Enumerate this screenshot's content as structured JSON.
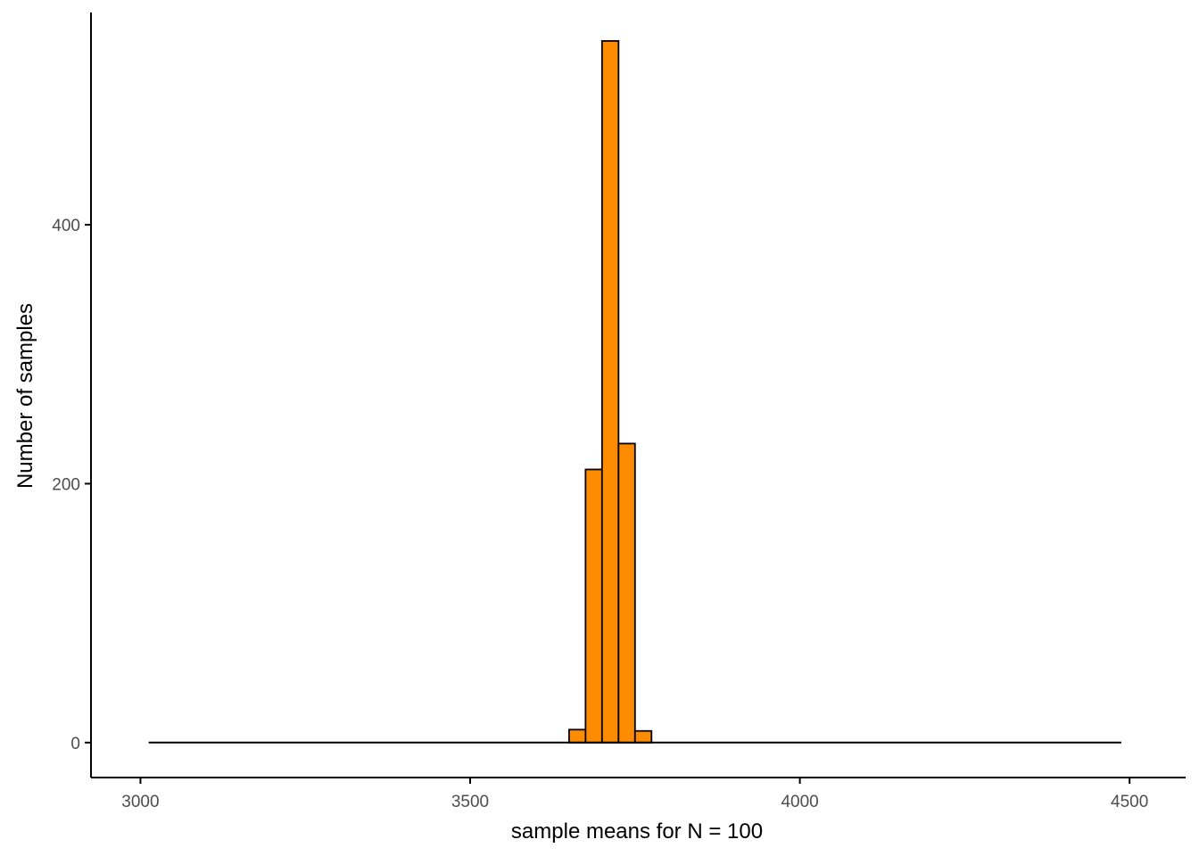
{
  "chart_data": {
    "type": "bar",
    "title": "",
    "xlabel": "sample means for N = 100",
    "ylabel": "Number of samples",
    "xlim": [
      2925,
      4585
    ],
    "ylim": [
      -27,
      564
    ],
    "x_ticks": [
      3000,
      3500,
      4000,
      4500
    ],
    "y_ticks": [
      0,
      200,
      400
    ],
    "grid": false,
    "legend": "none",
    "bin_width": 25,
    "range": [
      3012.5,
      4487.5
    ],
    "bins": [
      {
        "x0": 3650,
        "x1": 3675,
        "count": 10
      },
      {
        "x0": 3675,
        "x1": 3700,
        "count": 211
      },
      {
        "x0": 3700,
        "x1": 3725,
        "count": 542
      },
      {
        "x0": 3725,
        "x1": 3750,
        "count": 231
      },
      {
        "x0": 3750,
        "x1": 3775,
        "count": 9
      }
    ],
    "colors": {
      "fill": "#FF8C00",
      "stroke": "#000000",
      "axis": "#000000",
      "tick_text": "#4d4d4d"
    }
  }
}
